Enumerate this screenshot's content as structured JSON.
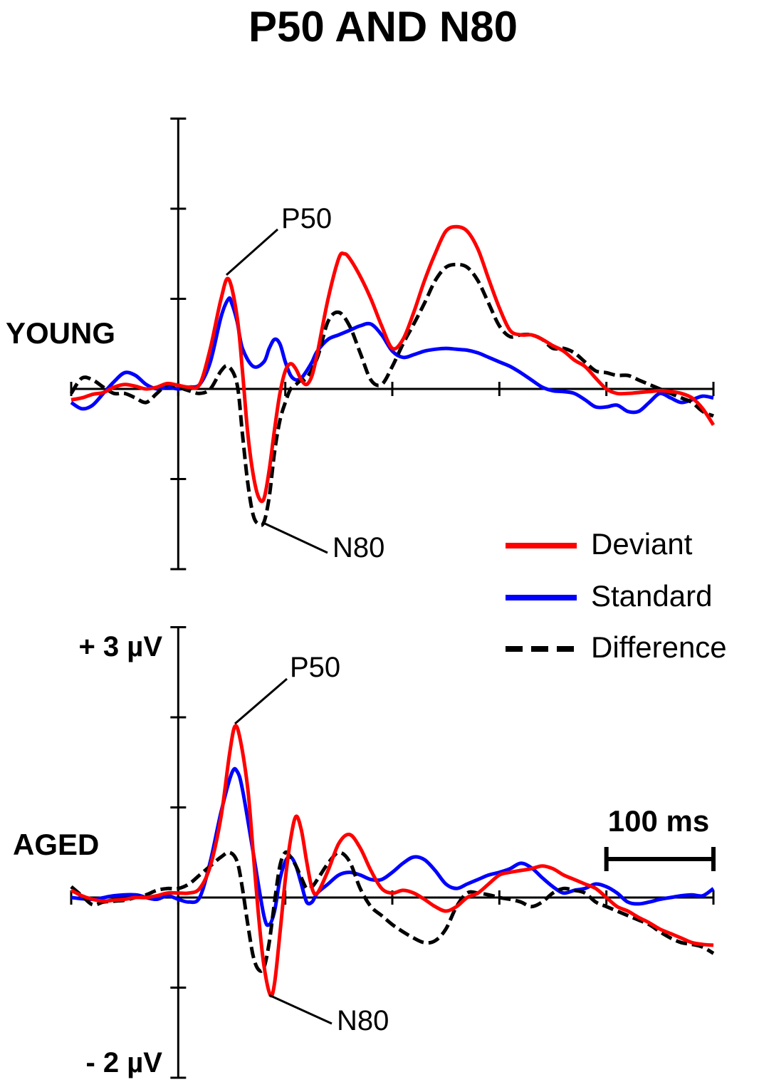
{
  "chart_data": {
    "type": "line",
    "title": "P50 AND N80",
    "xlabel": "",
    "ylabel": "",
    "x_range_ms": [
      -100,
      500
    ],
    "stimulus_onset_ms": 0,
    "x_tick_step_ms": 100,
    "y_tick_step_uv": 1,
    "ylim": [
      -2,
      3
    ],
    "y_tick_labels": {
      "top": "+ 3 µV",
      "bottom": "- 2 µV"
    },
    "scale_bar": {
      "label": "100 ms",
      "duration_ms": 100,
      "start_ms": 400
    },
    "legend": [
      {
        "name": "Deviant",
        "color": "#ff0000",
        "style": "solid"
      },
      {
        "name": "Standard",
        "color": "#0000ff",
        "style": "solid"
      },
      {
        "name": "Difference",
        "color": "#000000",
        "style": "dashed"
      }
    ],
    "panels": [
      {
        "name": "YOUNG",
        "annotations": [
          {
            "text": "P50",
            "target_series": "Deviant",
            "x": 47,
            "y": 1.22
          },
          {
            "text": "N80",
            "target_series": "Difference",
            "x": 80,
            "y": -1.5
          }
        ],
        "series": [
          {
            "name": "Deviant",
            "x": [
              -100,
              -90,
              -80,
              -70,
              -60,
              -50,
              -40,
              -30,
              -20,
              -10,
              0,
              10,
              20,
              30,
              40,
              47,
              55,
              60,
              65,
              70,
              75,
              80,
              85,
              90,
              95,
              100,
              105,
              110,
              115,
              120,
              125,
              130,
              140,
              150,
              155,
              160,
              170,
              180,
              190,
              200,
              210,
              220,
              230,
              240,
              250,
              260,
              270,
              280,
              290,
              300,
              310,
              320,
              330,
              340,
              350,
              360,
              370,
              380,
              390,
              400,
              410,
              420,
              430,
              440,
              450,
              460,
              470,
              480,
              490,
              500
            ],
            "y": [
              -0.12,
              -0.1,
              -0.06,
              -0.04,
              0.02,
              0.05,
              0.03,
              0,
              0.02,
              0.06,
              0.04,
              0.02,
              0.05,
              0.45,
              1.0,
              1.22,
              0.8,
              0.2,
              -0.5,
              -0.95,
              -1.2,
              -1.22,
              -0.9,
              -0.45,
              -0.05,
              0.2,
              0.28,
              0.22,
              0.1,
              0.05,
              0.15,
              0.4,
              1.0,
              1.45,
              1.5,
              1.45,
              1.25,
              1.0,
              0.7,
              0.45,
              0.55,
              0.85,
              1.2,
              1.5,
              1.75,
              1.8,
              1.75,
              1.55,
              1.22,
              0.9,
              0.65,
              0.6,
              0.6,
              0.55,
              0.48,
              0.42,
              0.32,
              0.25,
              0.12,
              0,
              -0.05,
              -0.05,
              -0.04,
              -0.03,
              -0.02,
              -0.03,
              -0.05,
              -0.1,
              -0.22,
              -0.4
            ]
          },
          {
            "name": "Standard",
            "x": [
              -100,
              -90,
              -80,
              -70,
              -60,
              -50,
              -40,
              -30,
              -20,
              -10,
              0,
              10,
              20,
              30,
              40,
              47,
              50,
              55,
              60,
              70,
              80,
              85,
              90,
              95,
              100,
              105,
              110,
              115,
              120,
              125,
              130,
              140,
              150,
              160,
              170,
              180,
              190,
              200,
              210,
              220,
              230,
              240,
              250,
              260,
              270,
              280,
              290,
              300,
              310,
              320,
              330,
              340,
              350,
              360,
              370,
              380,
              390,
              400,
              410,
              420,
              430,
              440,
              450,
              460,
              470,
              480,
              490,
              500
            ],
            "y": [
              -0.15,
              -0.22,
              -0.18,
              -0.05,
              0.08,
              0.18,
              0.15,
              0.05,
              0,
              0.02,
              0,
              0.02,
              0.05,
              0.3,
              0.8,
              1.0,
              0.95,
              0.75,
              0.45,
              0.25,
              0.3,
              0.45,
              0.55,
              0.5,
              0.3,
              0.15,
              0.1,
              0.12,
              0.2,
              0.3,
              0.42,
              0.55,
              0.6,
              0.65,
              0.7,
              0.72,
              0.6,
              0.42,
              0.35,
              0.38,
              0.42,
              0.44,
              0.45,
              0.44,
              0.43,
              0.4,
              0.35,
              0.3,
              0.25,
              0.18,
              0.1,
              0.02,
              -0.02,
              -0.03,
              -0.05,
              -0.12,
              -0.2,
              -0.2,
              -0.18,
              -0.25,
              -0.25,
              -0.15,
              -0.05,
              -0.1,
              -0.15,
              -0.12,
              -0.08,
              -0.1
            ]
          },
          {
            "name": "Difference",
            "x": [
              -100,
              -90,
              -80,
              -70,
              -60,
              -50,
              -40,
              -30,
              -20,
              -10,
              0,
              10,
              20,
              30,
              40,
              47,
              55,
              60,
              65,
              70,
              75,
              80,
              85,
              90,
              95,
              100,
              105,
              110,
              115,
              120,
              130,
              140,
              150,
              160,
              170,
              180,
              190,
              200,
              210,
              220,
              230,
              240,
              250,
              260,
              270,
              280,
              290,
              300,
              310,
              320,
              330,
              340,
              350,
              360,
              370,
              380,
              390,
              400,
              410,
              420,
              430,
              440,
              450,
              460,
              470,
              480,
              490,
              500
            ],
            "y": [
              -0.05,
              0.12,
              0.1,
              0.02,
              -0.05,
              -0.05,
              -0.1,
              -0.15,
              -0.05,
              0.05,
              0.02,
              -0.02,
              -0.05,
              0,
              0.2,
              0.25,
              0.05,
              -0.5,
              -1.05,
              -1.4,
              -1.5,
              -1.48,
              -1.2,
              -0.7,
              -0.35,
              -0.15,
              0,
              0.05,
              0.1,
              0.12,
              0.35,
              0.75,
              0.85,
              0.7,
              0.4,
              0.1,
              0.05,
              0.25,
              0.5,
              0.72,
              0.95,
              1.2,
              1.35,
              1.38,
              1.35,
              1.2,
              0.95,
              0.7,
              0.58,
              0.6,
              0.6,
              0.55,
              0.45,
              0.45,
              0.4,
              0.3,
              0.2,
              0.18,
              0.15,
              0.15,
              0.1,
              0.05,
              0,
              -0.05,
              -0.1,
              -0.15,
              -0.25,
              -0.3
            ]
          }
        ]
      },
      {
        "name": "AGED",
        "annotations": [
          {
            "text": "P50",
            "target_series": "Deviant",
            "x": 53,
            "y": 1.9
          },
          {
            "text": "N80",
            "target_series": "Deviant",
            "x": 86,
            "y": -1.08
          }
        ],
        "series": [
          {
            "name": "Deviant",
            "x": [
              -100,
              -90,
              -80,
              -70,
              -60,
              -50,
              -40,
              -30,
              -20,
              -10,
              0,
              10,
              20,
              30,
              40,
              48,
              53,
              58,
              65,
              70,
              75,
              80,
              86,
              90,
              95,
              100,
              105,
              110,
              115,
              120,
              125,
              130,
              140,
              150,
              160,
              170,
              180,
              190,
              200,
              210,
              220,
              230,
              240,
              250,
              260,
              270,
              280,
              290,
              300,
              310,
              320,
              330,
              340,
              350,
              360,
              370,
              380,
              390,
              400,
              410,
              420,
              430,
              440,
              450,
              460,
              470,
              480,
              490,
              500
            ],
            "y": [
              0.08,
              0.02,
              -0.02,
              -0.04,
              -0.03,
              -0.02,
              0,
              0,
              0.02,
              0.05,
              0.05,
              0.05,
              0.1,
              0.35,
              0.9,
              1.6,
              1.9,
              1.75,
              1.2,
              0.5,
              -0.2,
              -0.75,
              -1.08,
              -0.95,
              -0.4,
              0.2,
              0.65,
              0.9,
              0.75,
              0.4,
              0.1,
              0.05,
              0.3,
              0.6,
              0.7,
              0.55,
              0.3,
              0.1,
              0.05,
              0.08,
              0.05,
              -0.02,
              -0.1,
              -0.15,
              -0.1,
              0,
              0.05,
              0.15,
              0.25,
              0.28,
              0.3,
              0.32,
              0.35,
              0.32,
              0.25,
              0.2,
              0.15,
              0.1,
              0,
              -0.1,
              -0.15,
              -0.22,
              -0.28,
              -0.35,
              -0.4,
              -0.45,
              -0.5,
              -0.52,
              -0.53
            ]
          },
          {
            "name": "Standard",
            "x": [
              -100,
              -80,
              -60,
              -40,
              -30,
              -20,
              -10,
              0,
              10,
              20,
              30,
              40,
              50,
              55,
              60,
              70,
              80,
              85,
              90,
              95,
              100,
              105,
              110,
              115,
              120,
              125,
              130,
              140,
              150,
              160,
              170,
              180,
              190,
              200,
              210,
              220,
              230,
              240,
              250,
              260,
              270,
              280,
              290,
              300,
              310,
              320,
              330,
              340,
              350,
              360,
              370,
              380,
              390,
              400,
              410,
              420,
              430,
              440,
              450,
              460,
              470,
              480,
              490,
              500
            ],
            "y": [
              0,
              -0.02,
              0.02,
              0.03,
              0,
              -0.02,
              0.02,
              -0.02,
              -0.05,
              0,
              0.4,
              0.95,
              1.38,
              1.4,
              1.2,
              0.5,
              -0.2,
              -0.3,
              -0.15,
              0.2,
              0.4,
              0.45,
              0.35,
              0.15,
              -0.05,
              -0.05,
              0.05,
              0.15,
              0.25,
              0.28,
              0.25,
              0.2,
              0.2,
              0.28,
              0.38,
              0.45,
              0.42,
              0.3,
              0.15,
              0.1,
              0.15,
              0.2,
              0.25,
              0.28,
              0.32,
              0.38,
              0.33,
              0.22,
              0.12,
              0.05,
              0.08,
              0.1,
              0.15,
              0.12,
              0.05,
              -0.05,
              -0.07,
              -0.05,
              -0.02,
              0,
              0.02,
              0.03,
              0.02,
              0.1
            ]
          },
          {
            "name": "Difference",
            "x": [
              -100,
              -90,
              -80,
              -70,
              -60,
              -50,
              -40,
              -30,
              -20,
              -10,
              0,
              10,
              20,
              30,
              40,
              48,
              55,
              60,
              65,
              70,
              75,
              80,
              85,
              90,
              95,
              100,
              105,
              110,
              115,
              120,
              125,
              130,
              140,
              150,
              160,
              170,
              180,
              190,
              200,
              210,
              220,
              230,
              240,
              250,
              260,
              270,
              280,
              290,
              300,
              310,
              320,
              330,
              340,
              350,
              360,
              370,
              380,
              390,
              400,
              410,
              420,
              430,
              440,
              450,
              460,
              470,
              480,
              490,
              500
            ],
            "y": [
              0.12,
              0.02,
              -0.08,
              -0.05,
              -0.04,
              -0.03,
              0,
              0.03,
              0.08,
              0.1,
              0.1,
              0.15,
              0.25,
              0.35,
              0.45,
              0.5,
              0.4,
              0.1,
              -0.3,
              -0.65,
              -0.8,
              -0.78,
              -0.5,
              -0.05,
              0.35,
              0.5,
              0.45,
              0.35,
              0.22,
              0.1,
              0.12,
              0.2,
              0.38,
              0.5,
              0.4,
              0.1,
              -0.1,
              -0.2,
              -0.3,
              -0.38,
              -0.45,
              -0.5,
              -0.48,
              -0.35,
              -0.1,
              0.05,
              0.05,
              0.03,
              0,
              -0.02,
              -0.05,
              -0.1,
              -0.05,
              0.05,
              0.1,
              0.08,
              0.05,
              -0.05,
              -0.1,
              -0.15,
              -0.2,
              -0.25,
              -0.3,
              -0.38,
              -0.45,
              -0.5,
              -0.52,
              -0.55,
              -0.62
            ]
          }
        ]
      }
    ]
  }
}
